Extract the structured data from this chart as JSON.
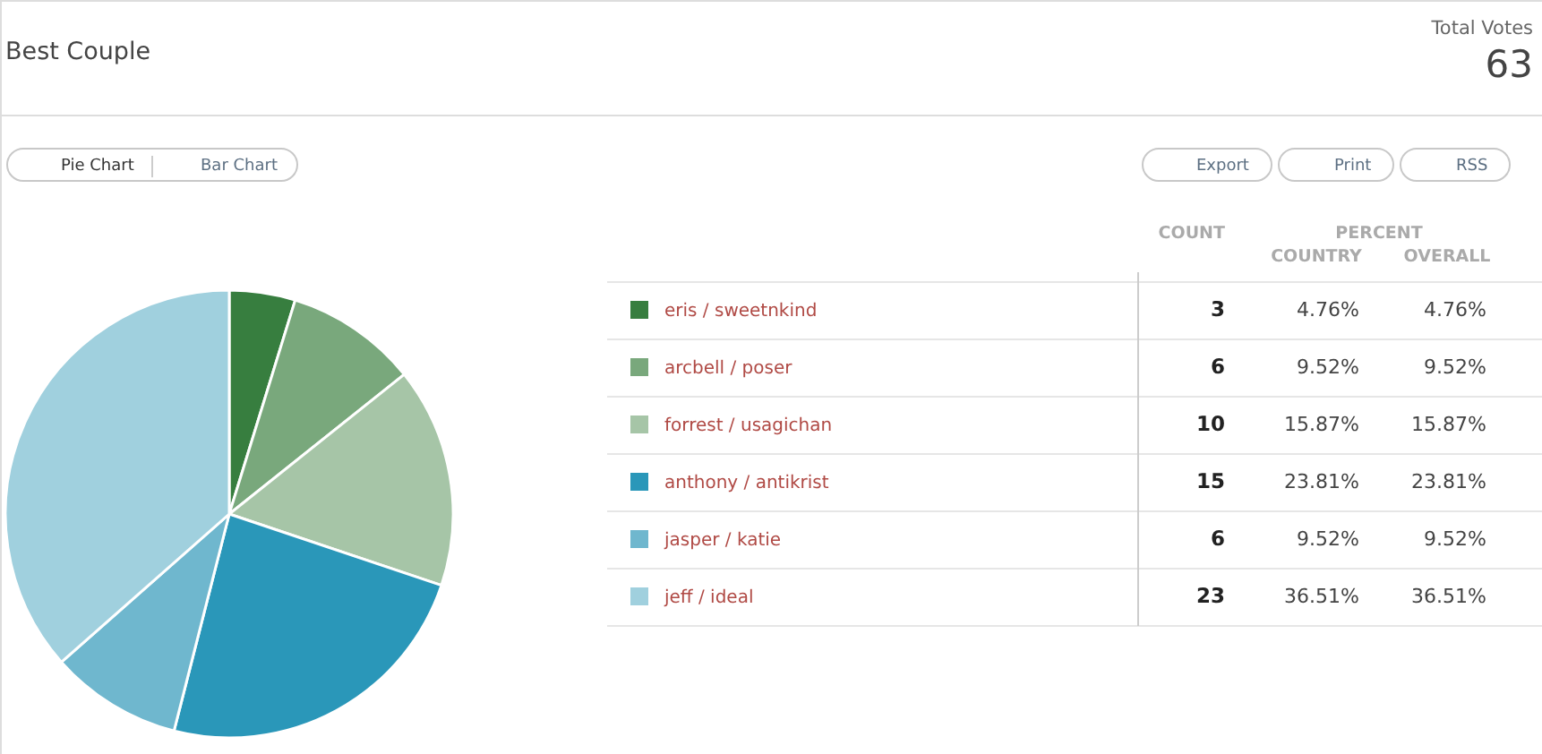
{
  "chart_data": {
    "type": "pie",
    "title": "Best Couple",
    "categories": [
      "eris / sweetnkind",
      "arcbell / poser",
      "forrest / usagichan",
      "anthony / antikrist",
      "jasper / katie",
      "jeff / ideal"
    ],
    "values": [
      3,
      6,
      10,
      15,
      6,
      23
    ],
    "colors": [
      "#377e3f",
      "#79a87c",
      "#a6c5a7",
      "#2a97b9",
      "#6fb7ce",
      "#a0d0de"
    ],
    "data_labels": true,
    "legend": "right",
    "annotations": [
      "Total Votes",
      "63",
      "Pie Chart",
      "Bar Chart",
      "Export",
      "Print",
      "RSS",
      "COUNT",
      "PERCENT",
      "COUNTRY",
      "OVERALL",
      "4.76%",
      "4.76%",
      "9.52%",
      "9.52%",
      "15.87%",
      "15.87%",
      "23.81%",
      "23.81%",
      "9.52%",
      "9.52%",
      "36.51%",
      "36.51%"
    ]
  }
}
